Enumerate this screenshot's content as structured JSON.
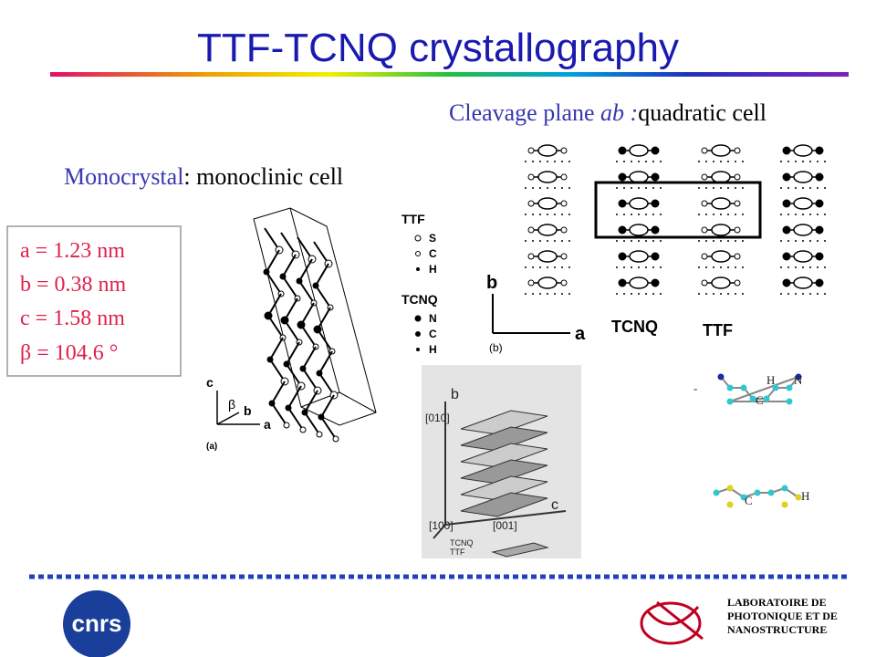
{
  "title": "TTF-TCNQ crystallography",
  "cleavage": {
    "text": "Cleavage plane ",
    "italic": "ab :",
    "rest": "quadratic cell"
  },
  "monocrystal": {
    "name": "Monocrystal",
    "rest": ": monoclinic cell"
  },
  "parameters": [
    "a = 1.23 nm",
    "b = 0.38 nm",
    "c = 1.58 nm",
    "β  = 104.6 °"
  ],
  "figure_a": {
    "legend_ttf": "TTF",
    "ttf_atoms": [
      "S",
      "C",
      "H"
    ],
    "legend_tcnq": "TCNQ",
    "tcnq_atoms": [
      "N",
      "C",
      "H"
    ],
    "axes": [
      "c",
      "b",
      "a"
    ],
    "angle": "β",
    "caption": "(a)"
  },
  "figure_b": {
    "axes": [
      "b",
      "a"
    ],
    "labels": [
      "TCNQ",
      "TTF"
    ],
    "caption": "(b)"
  },
  "figure_3d": {
    "axes": [
      "b",
      "c"
    ],
    "directions": [
      "[010]",
      "[100]",
      "[001]"
    ],
    "legend": [
      "TCNQ",
      "TTF"
    ]
  },
  "molecules": {
    "tcnq": [
      "-",
      "H",
      "N",
      "C"
    ],
    "ttf": [
      "C",
      "H"
    ]
  },
  "logo": "cnrs",
  "lab": [
    "LABORATOIRE DE",
    "PHOTONIQUE ET DE",
    "NANOSTRUCTURE"
  ]
}
